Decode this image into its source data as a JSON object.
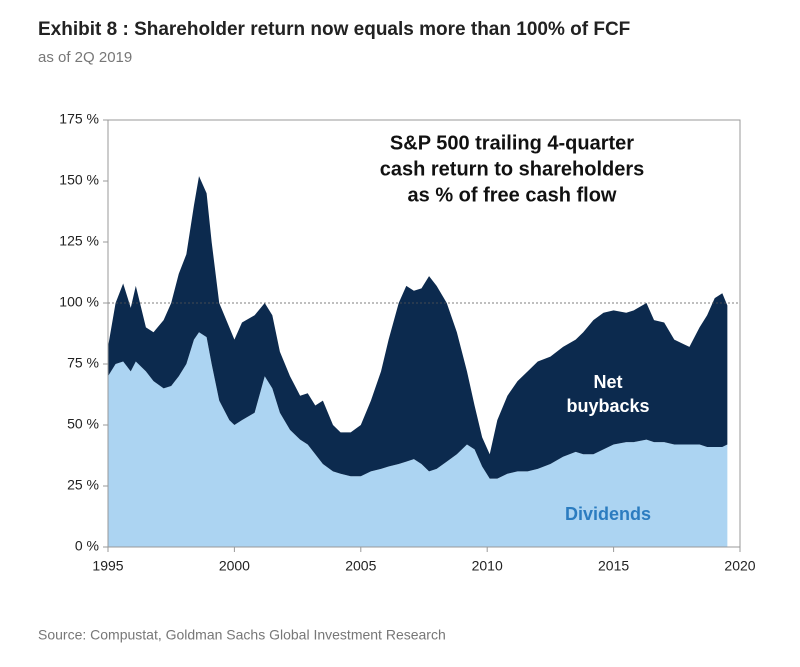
{
  "chart_data": {
    "type": "area",
    "stacked": true,
    "title": "Exhibit 8 : Shareholder return now equals more than 100% of FCF",
    "subtitle": "as of 2Q 2019",
    "annotation": [
      "S&P 500 trailing 4-quarter",
      "cash return to shareholders",
      "as % of free cash flow"
    ],
    "source": "Source: Compustat, Goldman Sachs Global Investment Research",
    "reference_line": 100,
    "x": [
      1995.0,
      1995.3,
      1995.6,
      1995.9,
      1996.1,
      1996.5,
      1996.8,
      1997.2,
      1997.5,
      1997.8,
      1998.1,
      1998.4,
      1998.6,
      1998.9,
      1999.1,
      1999.4,
      1999.8,
      2000.0,
      2000.3,
      2000.8,
      2001.2,
      2001.5,
      2001.8,
      2002.2,
      2002.6,
      2002.9,
      2003.2,
      2003.5,
      2003.9,
      2004.2,
      2004.6,
      2005.0,
      2005.4,
      2005.8,
      2006.1,
      2006.5,
      2006.8,
      2007.1,
      2007.4,
      2007.7,
      2008.0,
      2008.4,
      2008.8,
      2009.2,
      2009.5,
      2009.8,
      2010.1,
      2010.4,
      2010.8,
      2011.2,
      2011.6,
      2012.0,
      2012.5,
      2013.0,
      2013.5,
      2013.8,
      2014.2,
      2014.6,
      2015.0,
      2015.5,
      2015.8,
      2016.3,
      2016.6,
      2017.0,
      2017.4,
      2017.8,
      2018.0,
      2018.4,
      2018.7,
      2019.0,
      2019.3,
      2019.5
    ],
    "series": [
      {
        "name": "Dividends",
        "color": "#acd4f2",
        "label_color": "#2b7cc0",
        "values": [
          70,
          75,
          76,
          72,
          76,
          72,
          68,
          65,
          66,
          70,
          75,
          85,
          88,
          86,
          75,
          60,
          52,
          50,
          52,
          55,
          70,
          65,
          55,
          48,
          44,
          42,
          38,
          34,
          31,
          30,
          29,
          29,
          31,
          32,
          33,
          34,
          35,
          36,
          34,
          31,
          32,
          35,
          38,
          42,
          40,
          33,
          28,
          28,
          30,
          31,
          31,
          32,
          34,
          37,
          39,
          38,
          38,
          40,
          42,
          43,
          43,
          44,
          43,
          43,
          42,
          42,
          42,
          42,
          41,
          41,
          41,
          42
        ]
      },
      {
        "name": "Net buybacks",
        "color": "#0c2a4e",
        "label_color": "#ffffff",
        "values": [
          12,
          25,
          32,
          26,
          31,
          18,
          20,
          28,
          34,
          42,
          45,
          55,
          64,
          59,
          50,
          40,
          38,
          35,
          40,
          40,
          30,
          30,
          25,
          22,
          18,
          21,
          20,
          26,
          19,
          17,
          18,
          21,
          29,
          40,
          52,
          66,
          72,
          69,
          72,
          80,
          75,
          65,
          50,
          30,
          18,
          12,
          10,
          24,
          32,
          37,
          41,
          44,
          44,
          45,
          46,
          50,
          55,
          56,
          55,
          53,
          54,
          56,
          50,
          49,
          43,
          41,
          40,
          48,
          54,
          61,
          63,
          57
        ]
      }
    ],
    "xlim": [
      1995,
      2020
    ],
    "xticks": [
      1995,
      2000,
      2005,
      2010,
      2015,
      2020
    ],
    "ylim": [
      0,
      175
    ],
    "yticks": [
      {
        "value": 0,
        "label": "0 %"
      },
      {
        "value": 25,
        "label": "25 %"
      },
      {
        "value": 50,
        "label": "50 %"
      },
      {
        "value": 75,
        "label": "75 %"
      },
      {
        "value": 100,
        "label": "100 %"
      },
      {
        "value": 125,
        "label": "125 %"
      },
      {
        "value": 150,
        "label": "150 %"
      },
      {
        "value": 175,
        "label": "175 %"
      }
    ]
  }
}
